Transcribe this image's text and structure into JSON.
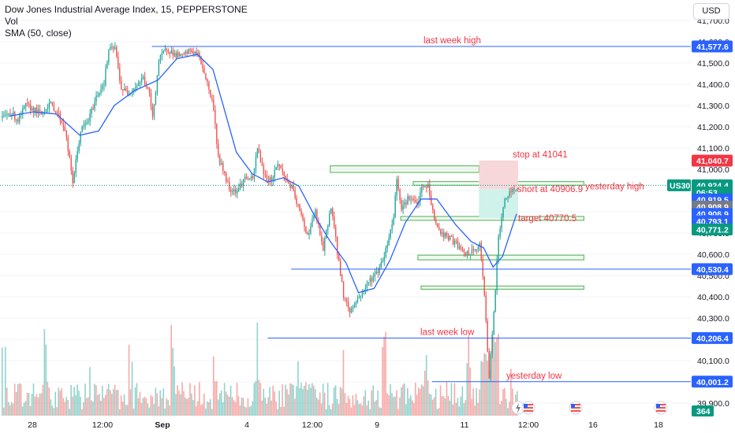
{
  "legend": {
    "title": "Dow Jones Industrial Average Index, 15, PEPPERSTONE",
    "vol": "Vol",
    "sma": "SMA (50, close)"
  },
  "toolbar": {
    "currency": "USD"
  },
  "colors": {
    "up": "#26a69a",
    "down": "#ef5350",
    "sma": "#2962ff",
    "hline": "#2962ff",
    "annotation": "#f23645",
    "rect_border": "#4caf50",
    "rect_fill": "#e8f5e9",
    "stop_fill": "#f8d7da",
    "target_fill": "#d1f1eb",
    "tag_blue": "#2962ff",
    "tag_red": "#f23645",
    "tag_teal": "#089981",
    "tag_gray": "#787b86",
    "grid": "#f0f3fa"
  },
  "chart_data": {
    "type": "candlestick",
    "symbol": "US30",
    "interval": "15",
    "y_axis": {
      "ticks": [
        41700,
        41600,
        41500,
        41400,
        41300,
        41200,
        41100,
        41000,
        40900,
        40800,
        40700,
        40600,
        40500,
        40400,
        40300,
        40200,
        40100,
        40000,
        39900
      ],
      "tick_labels": [
        "41,700.0",
        "41,600.0",
        "41,500.0",
        "41,400.0",
        "41,300.0",
        "41,200.0",
        "41,100.0",
        "41,000.0",
        "40,900.0",
        "40,800.0",
        "40,700.0",
        "40,600.0",
        "40,500.0",
        "40,400.0",
        "40,300.0",
        "40,200.0",
        "40,100.0",
        "40,000.0",
        "39,900.0"
      ]
    },
    "x_axis": {
      "tick_labels": [
        "28",
        "12:00",
        "Sep",
        "4",
        "12:00",
        "9",
        "11",
        "12:00",
        "16",
        "18"
      ]
    },
    "price_path": [
      [
        0,
        41240
      ],
      [
        5,
        41270
      ],
      [
        10,
        41230
      ],
      [
        15,
        41300
      ],
      [
        20,
        41280
      ],
      [
        25,
        41260
      ],
      [
        30,
        41310
      ],
      [
        35,
        41270
      ],
      [
        40,
        41190
      ],
      [
        45,
        40940
      ],
      [
        50,
        41180
      ],
      [
        55,
        41230
      ],
      [
        60,
        41340
      ],
      [
        65,
        41410
      ],
      [
        68,
        41560
      ],
      [
        72,
        41570
      ],
      [
        76,
        41380
      ],
      [
        80,
        41360
      ],
      [
        85,
        41390
      ],
      [
        90,
        41430
      ],
      [
        94,
        41350
      ],
      [
        96,
        41240
      ],
      [
        100,
        41510
      ],
      [
        105,
        41570
      ],
      [
        110,
        41540
      ],
      [
        115,
        41530
      ],
      [
        120,
        41560
      ],
      [
        125,
        41540
      ],
      [
        128,
        41480
      ],
      [
        130,
        41430
      ],
      [
        135,
        41290
      ],
      [
        138,
        41050
      ],
      [
        142,
        40980
      ],
      [
        145,
        40910
      ],
      [
        150,
        40900
      ],
      [
        155,
        40960
      ],
      [
        160,
        40950
      ],
      [
        163,
        41100
      ],
      [
        168,
        40960
      ],
      [
        172,
        40950
      ],
      [
        176,
        41030
      ],
      [
        180,
        40970
      ],
      [
        185,
        40910
      ],
      [
        190,
        40800
      ],
      [
        195,
        40690
      ],
      [
        200,
        40800
      ],
      [
        205,
        40620
      ],
      [
        210,
        40830
      ],
      [
        215,
        40560
      ],
      [
        218,
        40410
      ],
      [
        222,
        40330
      ],
      [
        226,
        40380
      ],
      [
        230,
        40420
      ],
      [
        235,
        40480
      ],
      [
        240,
        40520
      ],
      [
        245,
        40620
      ],
      [
        250,
        40780
      ],
      [
        252,
        40960
      ],
      [
        255,
        40820
      ],
      [
        260,
        40870
      ],
      [
        265,
        40830
      ],
      [
        268,
        40910
      ],
      [
        272,
        40920
      ],
      [
        276,
        40760
      ],
      [
        280,
        40700
      ],
      [
        285,
        40680
      ],
      [
        290,
        40650
      ],
      [
        295,
        40600
      ],
      [
        300,
        40610
      ],
      [
        305,
        40640
      ],
      [
        308,
        40420
      ],
      [
        311,
        40020
      ],
      [
        314,
        40320
      ],
      [
        317,
        40680
      ],
      [
        320,
        40830
      ],
      [
        323,
        40880
      ],
      [
        326,
        40900
      ],
      [
        329,
        40924
      ]
    ],
    "candle_slots": 330,
    "sma50": [
      [
        5,
        41250
      ],
      [
        20,
        41270
      ],
      [
        35,
        41260
      ],
      [
        50,
        41160
      ],
      [
        62,
        41180
      ],
      [
        72,
        41300
      ],
      [
        85,
        41370
      ],
      [
        100,
        41420
      ],
      [
        112,
        41520
      ],
      [
        125,
        41540
      ],
      [
        135,
        41470
      ],
      [
        142,
        41290
      ],
      [
        150,
        41080
      ],
      [
        160,
        40980
      ],
      [
        170,
        40940
      ],
      [
        180,
        40960
      ],
      [
        190,
        40920
      ],
      [
        200,
        40780
      ],
      [
        210,
        40660
      ],
      [
        220,
        40560
      ],
      [
        228,
        40420
      ],
      [
        238,
        40440
      ],
      [
        248,
        40570
      ],
      [
        258,
        40750
      ],
      [
        268,
        40860
      ],
      [
        278,
        40860
      ],
      [
        290,
        40740
      ],
      [
        300,
        40660
      ],
      [
        308,
        40630
      ],
      [
        314,
        40540
      ],
      [
        320,
        40590
      ],
      [
        329,
        40790
      ]
    ],
    "volume_max": 360,
    "volume_label": "364",
    "horizontal_lines": [
      {
        "label": "last week high",
        "price": 41577.6,
        "from": 96
      },
      {
        "label": "last week low",
        "price": 40206.4,
        "from": 170
      },
      {
        "label": "yesterday low",
        "price": 40001.2,
        "from": 275
      },
      {
        "label": "",
        "price": 40530.4,
        "from": 185
      }
    ],
    "zones": [
      {
        "label": "yesterday high",
        "p1": 41016,
        "p2": 40985,
        "from": 210,
        "to": 305
      },
      {
        "label": "",
        "p1": 40942,
        "p2": 40925,
        "from": 263,
        "to": 372
      },
      {
        "label": "",
        "p1": 40778,
        "p2": 40760,
        "from": 255,
        "to": 372
      },
      {
        "label": "",
        "p1": 40596,
        "p2": 40574,
        "from": 266,
        "to": 372
      },
      {
        "label": "",
        "p1": 40451,
        "p2": 40436,
        "from": 268,
        "to": 372
      }
    ],
    "position": {
      "stop_label": "stop at 41041",
      "entry_label": "short at 40906.9",
      "target_label": "target 40770.5",
      "stop": 41041,
      "entry": 40906.9,
      "target": 40770.5,
      "from": 305,
      "to": 330
    },
    "price_tags": [
      {
        "text": "41,577.6",
        "price": 41577.6,
        "color": "#2962ff"
      },
      {
        "text": "41,040.7",
        "price": 41040.7,
        "color": "#f23645"
      },
      {
        "text": "40,924.4",
        "price": 40924.4,
        "color": "#089981"
      },
      {
        "text": "06:53",
        "price": 40891,
        "color": "#089981"
      },
      {
        "text": "40,919.5",
        "price": 40858,
        "color": "#2962ff"
      },
      {
        "text": "40,908.9",
        "price": 40824,
        "color": "#787b86"
      },
      {
        "text": "40,906.9",
        "price": 40790,
        "color": "#2962ff"
      },
      {
        "text": "40,793.1",
        "price": 40756,
        "color": "#2962ff"
      },
      {
        "text": "40,771.2",
        "price": 40717,
        "color": "#089981"
      },
      {
        "text": "40,530.4",
        "price": 40530.4,
        "color": "#2962ff"
      },
      {
        "text": "40,206.4",
        "price": 40206.4,
        "color": "#2962ff"
      },
      {
        "text": "40,001.2",
        "price": 40001.2,
        "color": "#2962ff"
      }
    ],
    "symbol_tag": "US30"
  }
}
